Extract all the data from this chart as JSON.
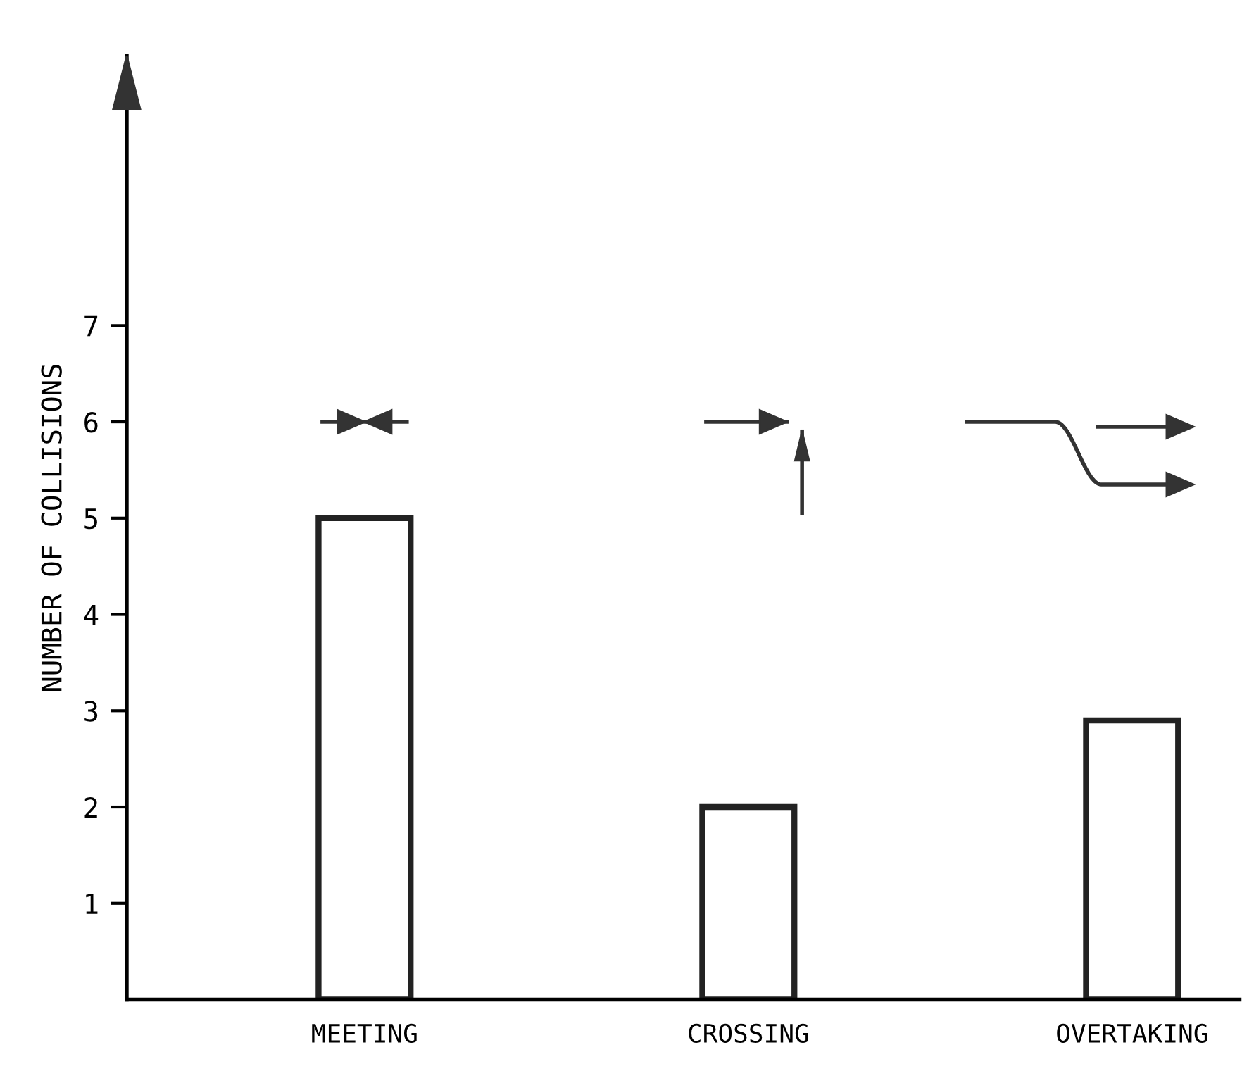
{
  "chart_data": {
    "type": "bar",
    "ylabel": "NUMBER OF COLLISIONS",
    "categories": [
      "MEETING",
      "CROSSING",
      "OVERTAKING"
    ],
    "values": [
      5,
      2,
      2.9
    ],
    "color": "#ffffff",
    "ylim": [
      0,
      9.8
    ],
    "yticks": [
      1,
      2,
      3,
      4,
      5,
      6,
      7
    ],
    "grid": false,
    "legend": false
  }
}
